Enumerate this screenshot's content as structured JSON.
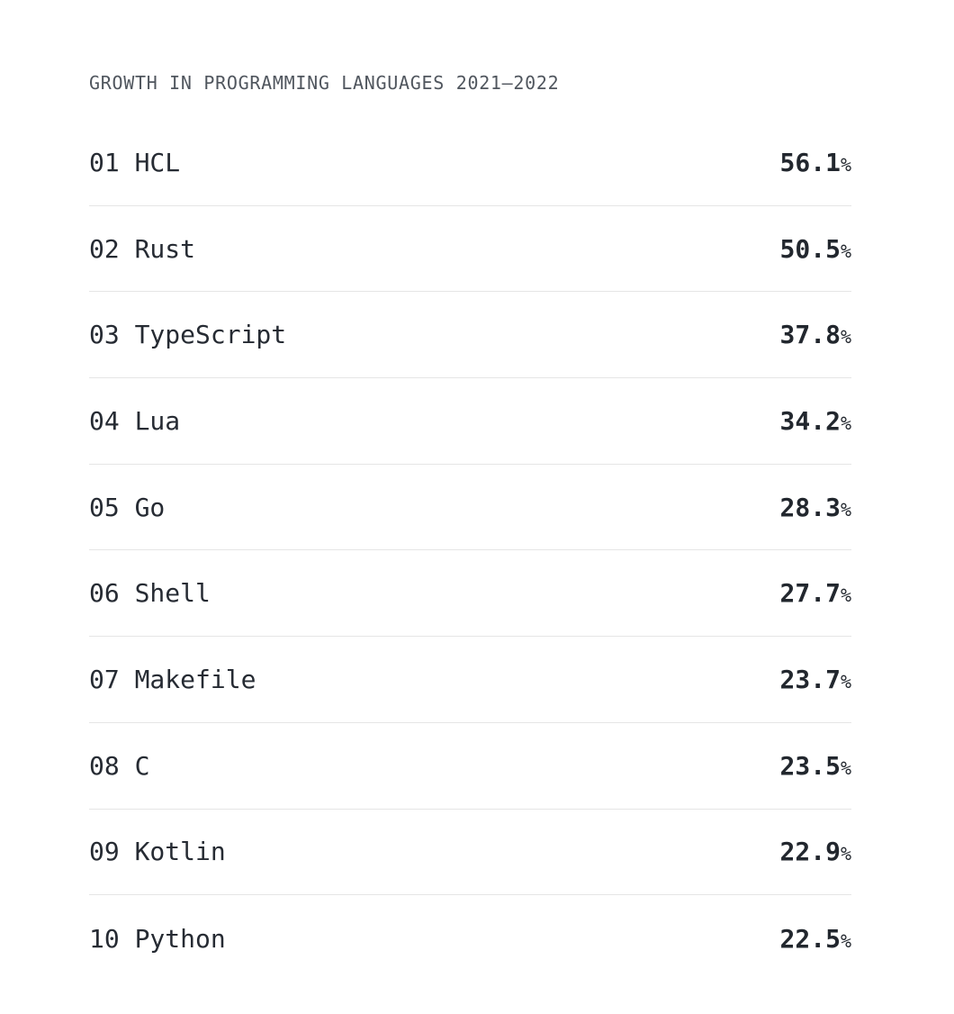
{
  "page": {
    "background": "#ffffff"
  },
  "header": {
    "title": "GROWTH IN PROGRAMMING LANGUAGES 2021–2022"
  },
  "list": {
    "rows": [
      {
        "rank": "01",
        "language": "HCL",
        "value": "56.1",
        "unit": "%"
      },
      {
        "rank": "02",
        "language": "Rust",
        "value": "50.5",
        "unit": "%"
      },
      {
        "rank": "03",
        "language": "TypeScript",
        "value": "37.8",
        "unit": "%"
      },
      {
        "rank": "04",
        "language": "Lua",
        "value": "34.2",
        "unit": "%"
      },
      {
        "rank": "05",
        "language": "Go",
        "value": "28.3",
        "unit": "%"
      },
      {
        "rank": "06",
        "language": "Shell",
        "value": "27.7",
        "unit": "%"
      },
      {
        "rank": "07",
        "language": "Makefile",
        "value": "23.7",
        "unit": "%"
      },
      {
        "rank": "08",
        "language": "C",
        "value": "23.5",
        "unit": "%"
      },
      {
        "rank": "09",
        "language": "Kotlin",
        "value": "22.9",
        "unit": "%"
      },
      {
        "rank": "10",
        "language": "Python",
        "value": "22.5",
        "unit": "%"
      }
    ]
  },
  "colors": {
    "title": "#50565e",
    "text": "#262b33",
    "value": "#22272e",
    "separator": "#e5e5e5",
    "background": "#ffffff"
  },
  "chart_data": {
    "type": "table",
    "title": "GROWTH IN PROGRAMMING LANGUAGES 2021–2022",
    "categories": [
      "HCL",
      "Rust",
      "TypeScript",
      "Lua",
      "Go",
      "Shell",
      "Makefile",
      "C",
      "Kotlin",
      "Python"
    ],
    "ranks": [
      "01",
      "02",
      "03",
      "04",
      "05",
      "06",
      "07",
      "08",
      "09",
      "10"
    ],
    "values": [
      56.1,
      50.5,
      37.8,
      34.2,
      28.3,
      27.7,
      23.7,
      23.5,
      22.9,
      22.5
    ],
    "value_unit": "%",
    "value_range": [
      22.5,
      56.1
    ],
    "legend": false,
    "grid": false,
    "layout": "ranked list, label left, value right-aligned, thin row separators"
  }
}
